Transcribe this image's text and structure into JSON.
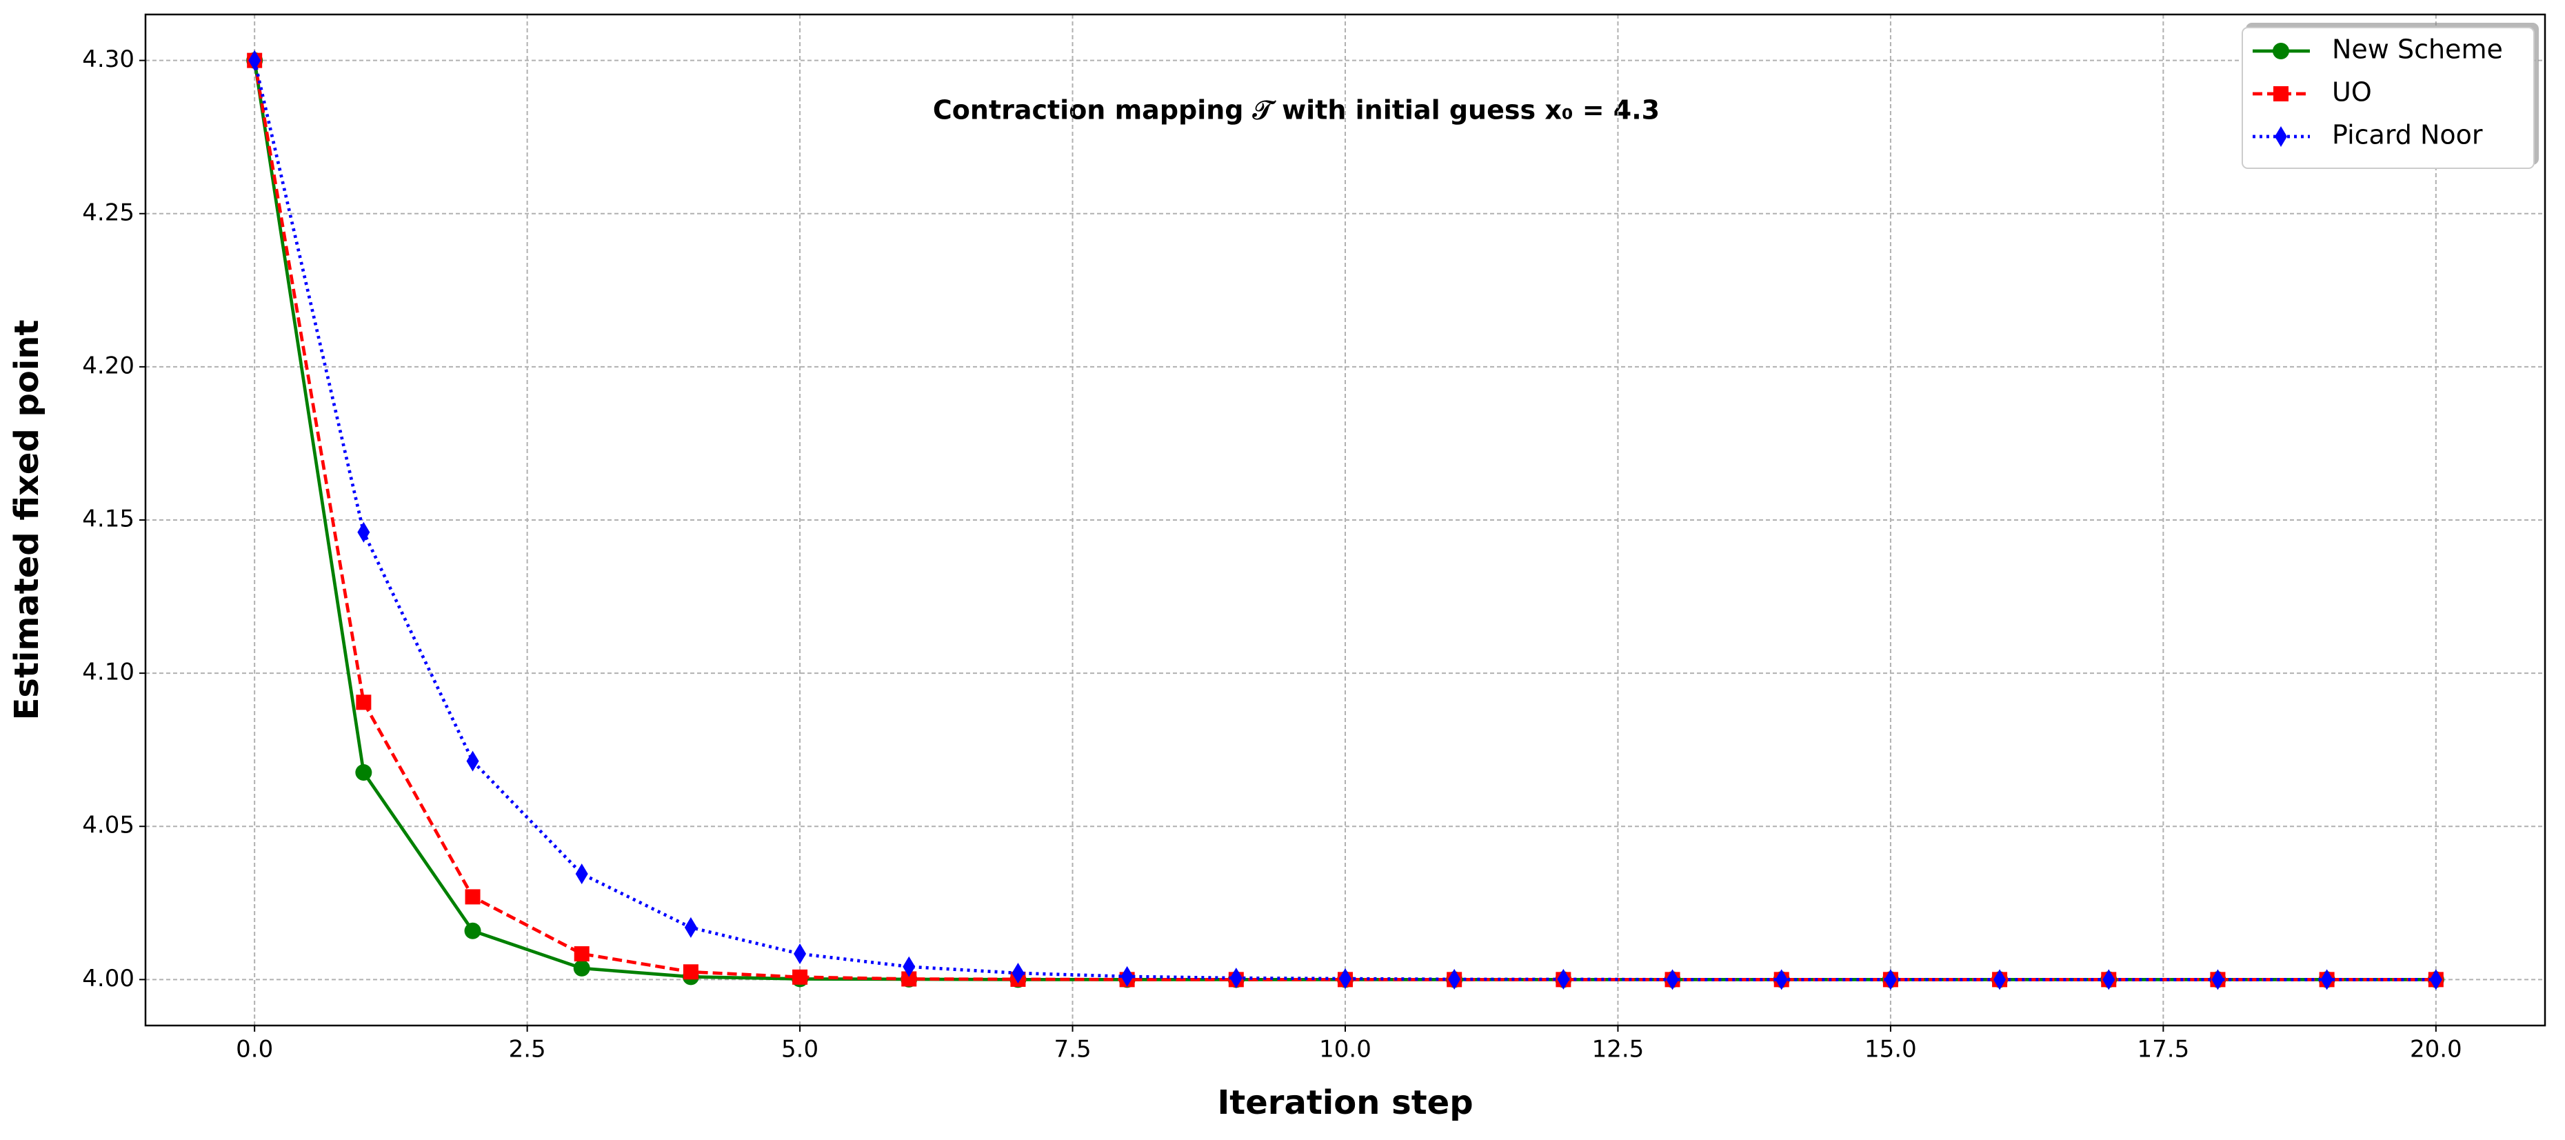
{
  "chart_data": {
    "type": "line",
    "title": "Contraction mapping 𝒯 with initial guess x₀ = 4.3",
    "x_label": "Iteration step",
    "y_label": "Estimated fixed point",
    "x": [
      0,
      1,
      2,
      3,
      4,
      5,
      6,
      7,
      8,
      9,
      10,
      11,
      12,
      13,
      14,
      15,
      16,
      17,
      18,
      19,
      20
    ],
    "series": [
      {
        "name": "New Scheme",
        "color": "#008000",
        "marker": "circle",
        "dash": "solid",
        "values": [
          4.3,
          4.0676,
          4.0159,
          4.0037,
          4.0009,
          4.0002,
          4.0001,
          4.0,
          4.0,
          4.0,
          4.0,
          4.0,
          4.0,
          4.0,
          4.0,
          4.0,
          4.0,
          4.0,
          4.0,
          4.0,
          4.0
        ]
      },
      {
        "name": "UO",
        "color": "#ff0000",
        "marker": "square",
        "dash": "dashed",
        "values": [
          4.3,
          4.0905,
          4.027,
          4.0084,
          4.0025,
          4.0008,
          4.0002,
          4.0001,
          4.0,
          4.0,
          4.0,
          4.0,
          4.0,
          4.0,
          4.0,
          4.0,
          4.0,
          4.0,
          4.0,
          4.0,
          4.0
        ]
      },
      {
        "name": "Picard Noor",
        "color": "#0000ff",
        "marker": "diamond",
        "dash": "dotted",
        "values": [
          4.3,
          4.146,
          4.0713,
          4.0345,
          4.017,
          4.0084,
          4.0042,
          4.0021,
          4.001,
          4.0005,
          4.0003,
          4.0001,
          4.0001,
          4.0,
          4.0,
          4.0,
          4.0,
          4.0,
          4.0,
          4.0,
          4.0
        ]
      }
    ],
    "xlim": [
      -1,
      21
    ],
    "ylim": [
      3.985,
      4.315
    ],
    "xticks": [
      {
        "value": 0,
        "label": "0.0"
      },
      {
        "value": 2.5,
        "label": "2.5"
      },
      {
        "value": 5,
        "label": "5.0"
      },
      {
        "value": 7.5,
        "label": "7.5"
      },
      {
        "value": 10,
        "label": "10.0"
      },
      {
        "value": 12.5,
        "label": "12.5"
      },
      {
        "value": 15,
        "label": "15.0"
      },
      {
        "value": 17.5,
        "label": "17.5"
      },
      {
        "value": 20,
        "label": "20.0"
      }
    ],
    "yticks": [
      {
        "value": 4.0,
        "label": "4.00"
      },
      {
        "value": 4.05,
        "label": "4.05"
      },
      {
        "value": 4.1,
        "label": "4.10"
      },
      {
        "value": 4.15,
        "label": "4.15"
      },
      {
        "value": 4.2,
        "label": "4.20"
      },
      {
        "value": 4.25,
        "label": "4.25"
      },
      {
        "value": 4.3,
        "label": "4.30"
      }
    ],
    "grid": true,
    "legend": "upper right"
  }
}
